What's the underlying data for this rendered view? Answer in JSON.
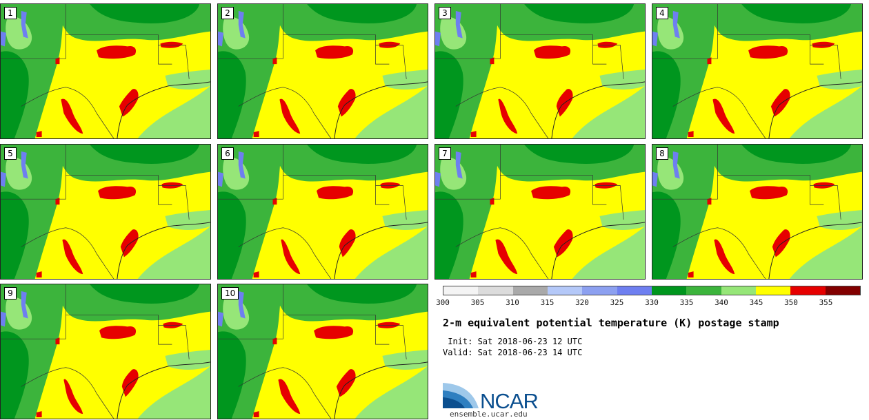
{
  "panels": [
    {
      "label": "1"
    },
    {
      "label": "2"
    },
    {
      "label": "3"
    },
    {
      "label": "4"
    },
    {
      "label": "5"
    },
    {
      "label": "6"
    },
    {
      "label": "7"
    },
    {
      "label": "8"
    },
    {
      "label": "9"
    },
    {
      "label": "10"
    }
  ],
  "colorbar": {
    "colors": [
      "#f4f4f4",
      "#dcdcdc",
      "#a9a9a9",
      "#b4c8f8",
      "#8ca0f0",
      "#6e7ff0",
      "#00961e",
      "#3cb43c",
      "#96e678",
      "#ffff00",
      "#e60000",
      "#820000"
    ],
    "ticks": [
      "300",
      "305",
      "310",
      "315",
      "320",
      "325",
      "330",
      "335",
      "340",
      "345",
      "350",
      "355"
    ]
  },
  "title": "2-m equivalent potential temperature (K) postage stamp",
  "init_line": " Init: Sat 2018-06-23 12 UTC",
  "valid_line": "Valid: Sat 2018-06-23 14 UTC",
  "logo": {
    "text": "NCAR",
    "url": "ensemble.ucar.edu"
  }
}
